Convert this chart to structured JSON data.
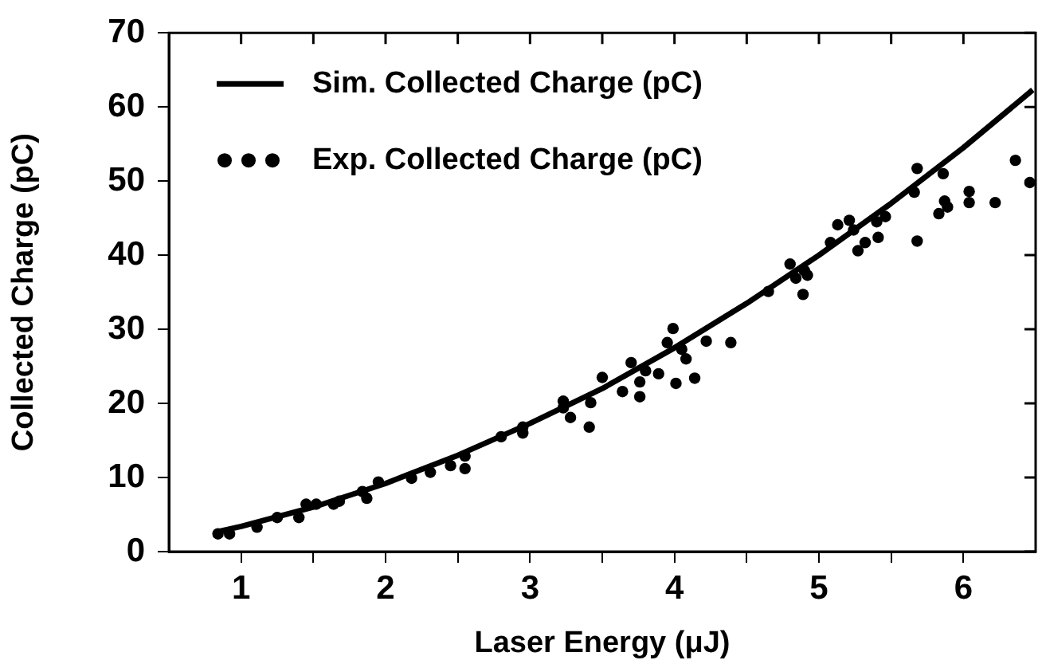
{
  "chart_data": {
    "type": "scatter",
    "xlabel": "Laser Energy (μJ)",
    "ylabel": "Collected Charge (pC)",
    "xlim": [
      0.5,
      6.5
    ],
    "xticks": [
      1,
      {
        "value": 1.5,
        "label": null
      },
      2,
      {
        "value": 2.5,
        "label": null
      },
      3,
      {
        "value": 3.5,
        "label": null
      },
      4,
      {
        "value": 4.5,
        "label": null
      },
      5,
      {
        "value": 5.5,
        "label": null
      },
      6
    ],
    "ylim": [
      0,
      70
    ],
    "yticks": [
      0,
      10,
      20,
      30,
      40,
      50,
      60,
      70
    ],
    "grid": false,
    "legend": "top left",
    "series": [
      {
        "name": "Sim. Collected Charge (pC)",
        "type": "line",
        "color": "#000000",
        "marker": "none",
        "line_style": "solid",
        "x": [
          0.84,
          1,
          1.5,
          2,
          2.5,
          3,
          3.5,
          4,
          4.5,
          5,
          5.5,
          6,
          6.48
        ],
        "values": [
          2.7,
          3.4,
          6.0,
          9.2,
          13,
          17.3,
          22,
          27.5,
          33.5,
          40,
          47,
          54.5,
          62.3
        ]
      },
      {
        "name": "Exp. Collected Charge (pC)",
        "type": "scatter",
        "color": "#000000",
        "marker": "circle",
        "x": [
          0.84,
          0.92,
          1.11,
          1.25,
          1.4,
          1.45,
          1.52,
          1.64,
          1.68,
          1.84,
          1.87,
          1.95,
          2.18,
          2.31,
          2.45,
          2.55,
          2.55,
          2.8,
          2.95,
          2.95,
          3.23,
          3.23,
          3.28,
          3.41,
          3.42,
          3.5,
          3.64,
          3.7,
          3.76,
          3.76,
          3.8,
          3.89,
          3.95,
          3.99,
          4.01,
          4.05,
          4.08,
          4.14,
          4.22,
          4.39,
          4.65,
          4.8,
          4.84,
          4.9,
          4.89,
          4.92,
          5.08,
          5.13,
          5.21,
          5.24,
          5.27,
          5.32,
          5.41,
          5.4,
          5.46,
          5.66,
          5.68,
          5.68,
          5.86,
          5.83,
          5.87,
          5.89,
          6.04,
          6.04,
          6.22,
          6.36,
          6.46
        ],
        "values": [
          2.4,
          2.4,
          3.3,
          4.6,
          4.6,
          6.4,
          6.4,
          6.4,
          6.8,
          8.1,
          7.2,
          9.4,
          9.9,
          10.7,
          11.6,
          12.9,
          11.2,
          15.5,
          16.8,
          16,
          20.3,
          19.4,
          18.1,
          16.8,
          20.1,
          23.5,
          21.6,
          25.5,
          20.9,
          22.9,
          24.4,
          24,
          28.2,
          30.1,
          22.7,
          27.3,
          26,
          23.4,
          28.4,
          28.2,
          35.1,
          38.8,
          36.9,
          37.9,
          34.7,
          37.3,
          41.7,
          44.1,
          44.7,
          43.4,
          40.6,
          41.7,
          42.4,
          44.5,
          45.2,
          48.5,
          51.7,
          41.9,
          51,
          45.6,
          47.3,
          46.5,
          48.6,
          47.1,
          47.1,
          52.8,
          49.8
        ]
      }
    ]
  }
}
